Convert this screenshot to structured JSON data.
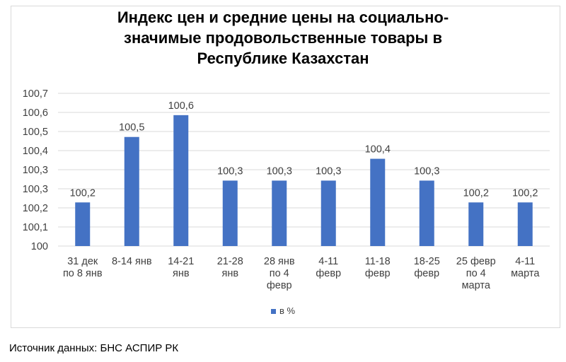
{
  "chart_data": {
    "type": "bar",
    "title_lines": [
      "Индекс цен и средние цены на социально-",
      "значимые продовольственные товары в",
      "Республике Казахстан"
    ],
    "categories": [
      [
        "31 дек",
        "по 8 янв"
      ],
      [
        "8-14 янв"
      ],
      [
        "14-21",
        "янв"
      ],
      [
        "21-28",
        "янв"
      ],
      [
        "28 янв",
        "по 4",
        "февр"
      ],
      [
        "4-11",
        "февр"
      ],
      [
        "11-18",
        "февр"
      ],
      [
        "18-25",
        "февр"
      ],
      [
        "25 февр",
        "по 4",
        "марта"
      ],
      [
        "4-11",
        "марта"
      ]
    ],
    "values": [
      100.2,
      100.5,
      100.6,
      100.3,
      100.3,
      100.3,
      100.4,
      100.3,
      100.2,
      100.2
    ],
    "plotted_values": [
      100.2,
      100.5,
      100.6,
      100.3,
      100.3,
      100.3,
      100.4,
      100.3,
      100.2,
      100.2
    ],
    "data_labels": [
      "100,2",
      "100,5",
      "100,6",
      "100,3",
      "100,3",
      "100,3",
      "100,4",
      "100,3",
      "100,2",
      "100,2"
    ],
    "yticks": [
      "100",
      "100,1",
      "100,2",
      "100,3",
      "100,3",
      "100,4",
      "100,5",
      "100,6",
      "100,7"
    ],
    "ylim": [
      100,
      100.7
    ],
    "grid": true,
    "legend": {
      "position": "bottom",
      "entries": [
        "в %"
      ]
    },
    "series": [
      {
        "name": "в %",
        "color": "#4472c4"
      }
    ]
  },
  "source_text": "Источник данных: БНС АСПИР РК"
}
